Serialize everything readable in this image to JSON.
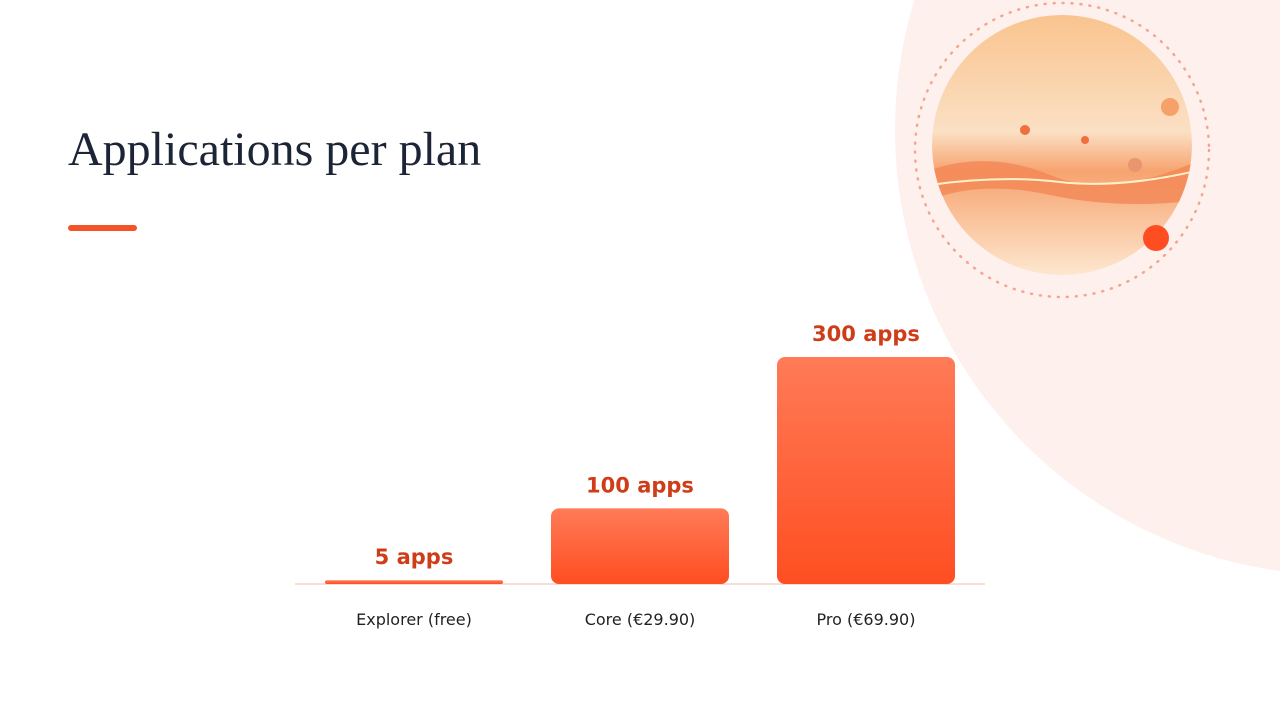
{
  "chart_data": {
    "type": "bar",
    "title": "Applications per plan",
    "categories": [
      "Explorer (free)",
      "Core (€29.90)",
      "Pro (€69.90)"
    ],
    "values": [
      5,
      100,
      300
    ],
    "value_labels": [
      "5 apps",
      "100 apps",
      "300 apps"
    ],
    "color": "#ff5a2e",
    "ylim": [
      0,
      300
    ]
  }
}
